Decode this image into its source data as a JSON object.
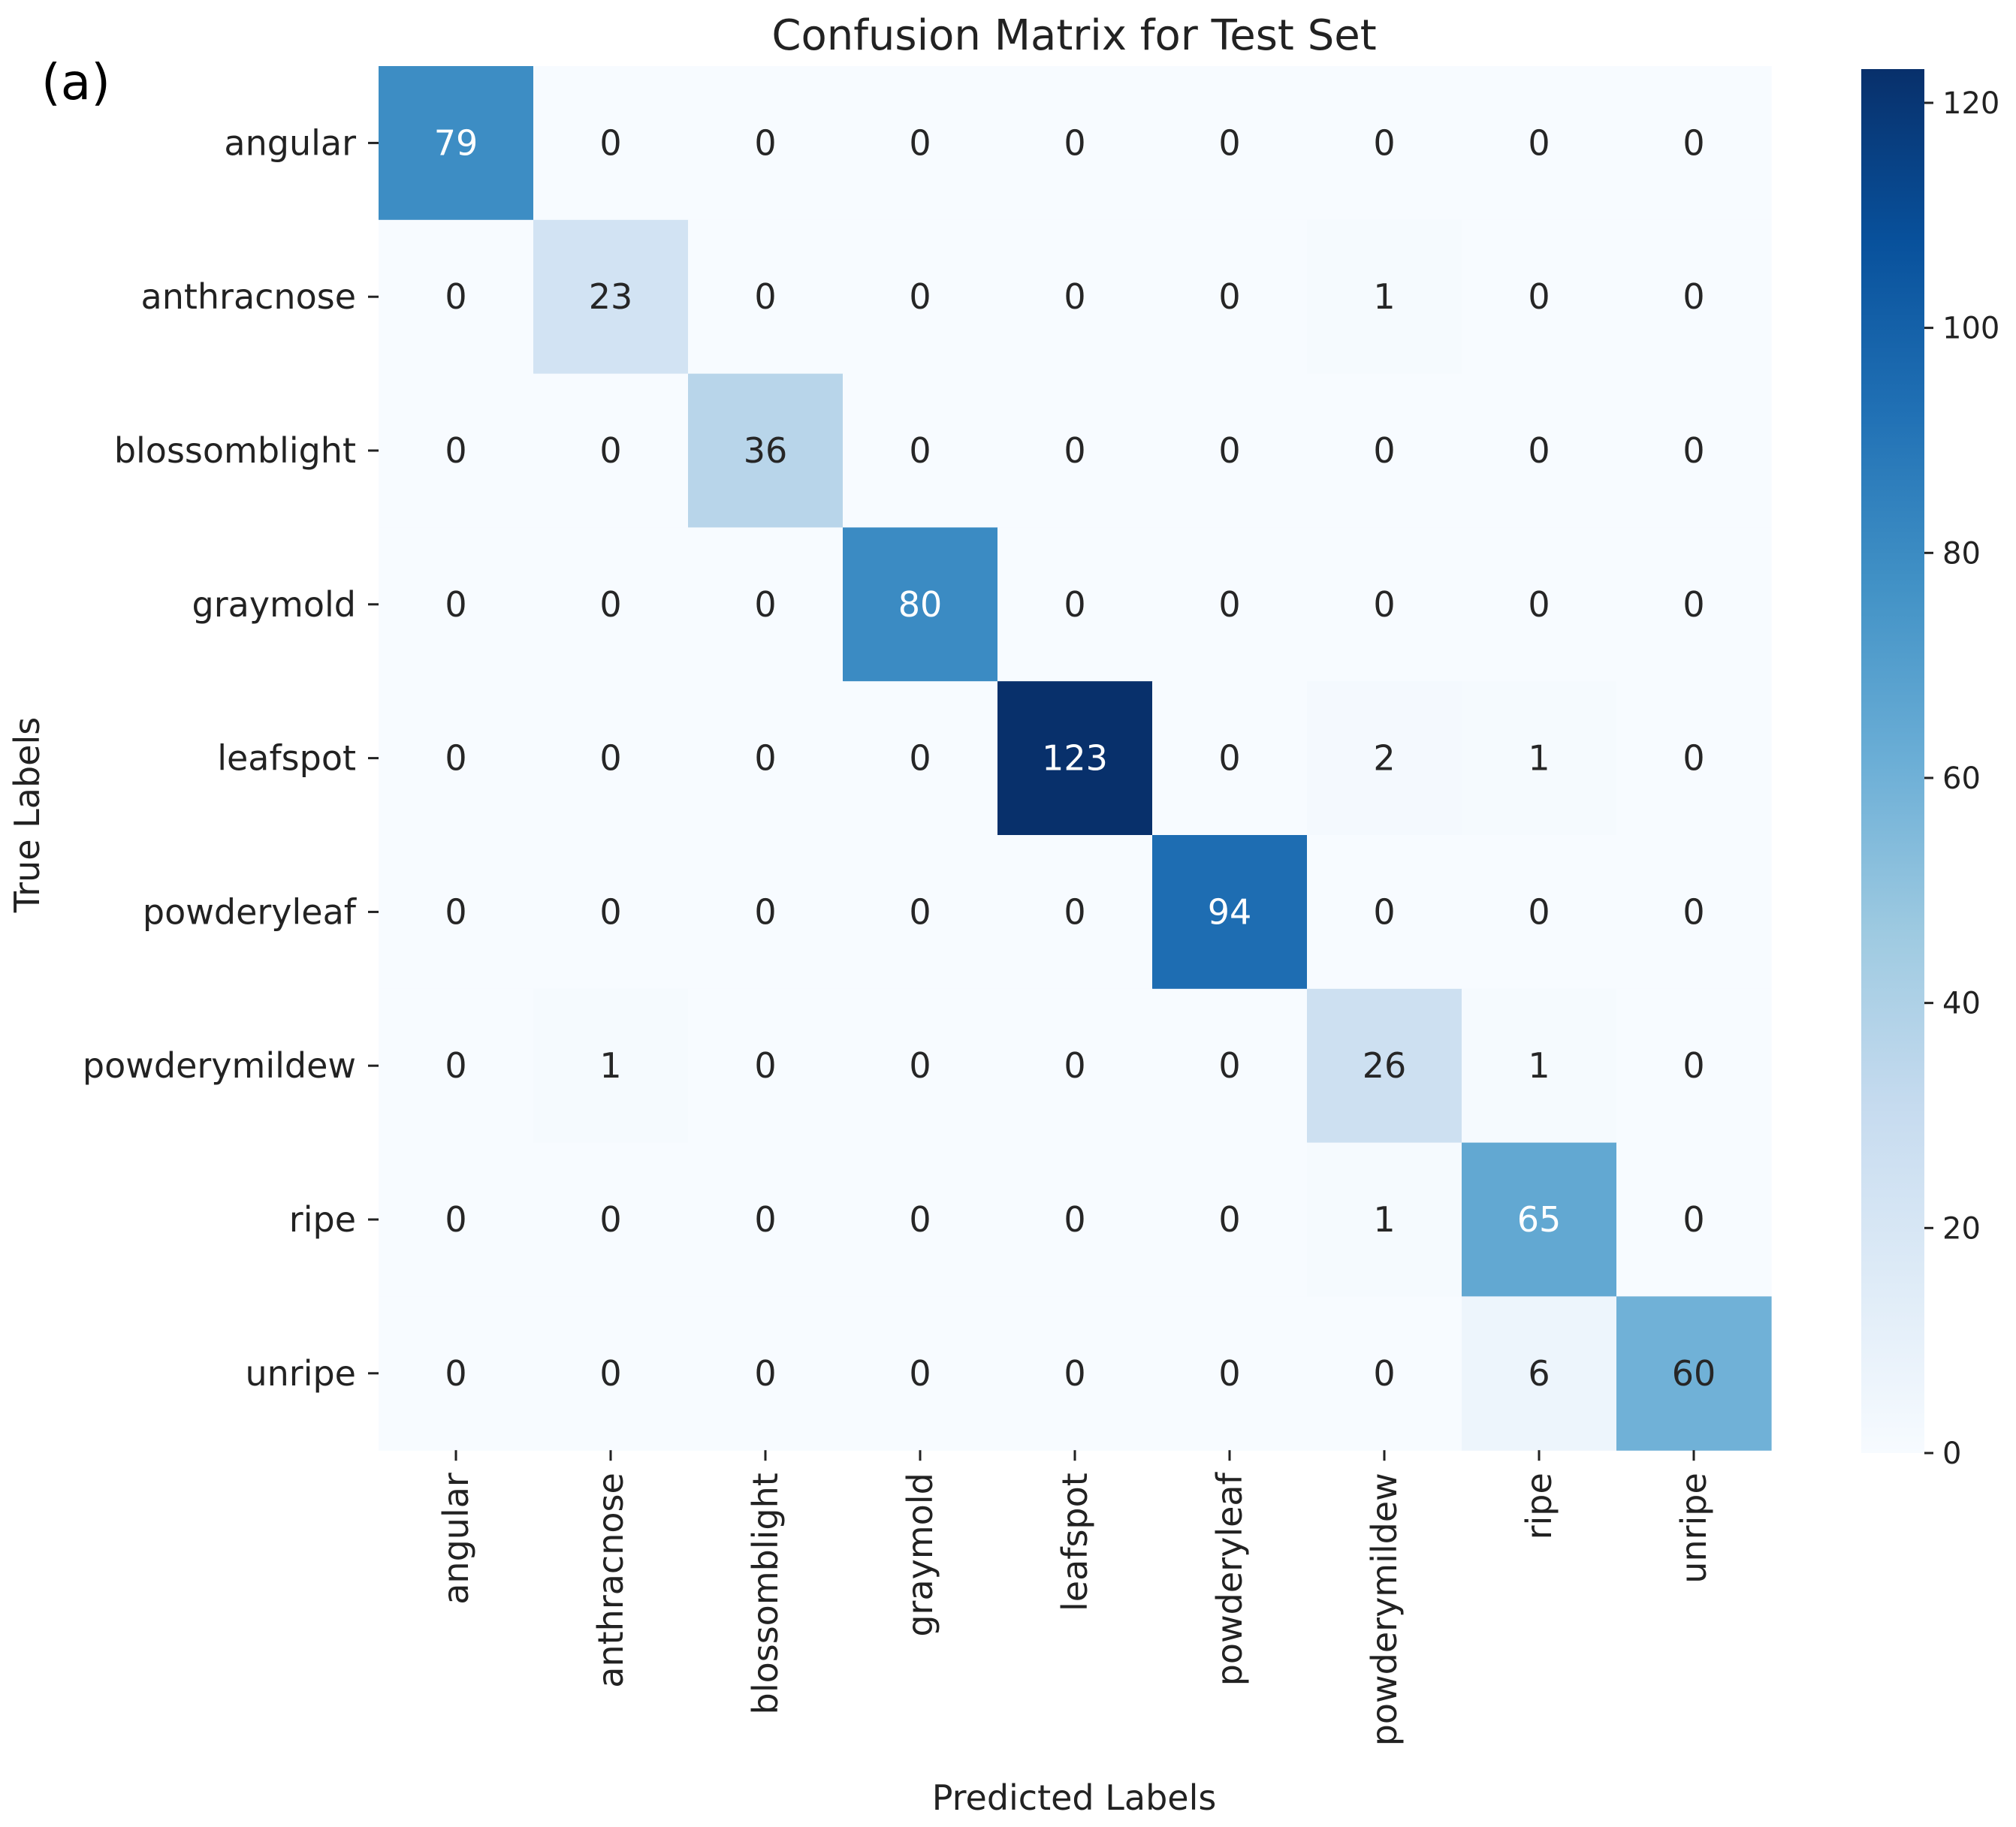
{
  "panel_label": "(a)",
  "chart_data": {
    "type": "heatmap",
    "title": "Confusion Matrix for Test Set",
    "xlabel": "Predicted Labels",
    "ylabel": "True Labels",
    "row_labels": [
      "angular",
      "anthracnose",
      "blossomblight",
      "graymold",
      "leafspot",
      "powderyleaf",
      "powderymildew",
      "ripe",
      "unripe"
    ],
    "col_labels": [
      "angular",
      "anthracnose",
      "blossomblight",
      "graymold",
      "leafspot",
      "powderyleaf",
      "powderymildew",
      "ripe",
      "unripe"
    ],
    "matrix": [
      [
        79,
        0,
        0,
        0,
        0,
        0,
        0,
        0,
        0
      ],
      [
        0,
        23,
        0,
        0,
        0,
        0,
        1,
        0,
        0
      ],
      [
        0,
        0,
        36,
        0,
        0,
        0,
        0,
        0,
        0
      ],
      [
        0,
        0,
        0,
        80,
        0,
        0,
        0,
        0,
        0
      ],
      [
        0,
        0,
        0,
        0,
        123,
        0,
        2,
        1,
        0
      ],
      [
        0,
        0,
        0,
        0,
        0,
        94,
        0,
        0,
        0
      ],
      [
        0,
        1,
        0,
        0,
        0,
        0,
        26,
        1,
        0
      ],
      [
        0,
        0,
        0,
        0,
        0,
        0,
        1,
        65,
        0
      ],
      [
        0,
        0,
        0,
        0,
        0,
        0,
        0,
        6,
        60
      ]
    ],
    "colormap": "Blues",
    "colorbar": {
      "min": 0,
      "max": 123,
      "ticks": [
        0,
        20,
        40,
        60,
        80,
        100,
        120
      ],
      "tick_labels": [
        "0",
        "20",
        "40",
        "60",
        "80",
        "100",
        "120"
      ]
    }
  }
}
